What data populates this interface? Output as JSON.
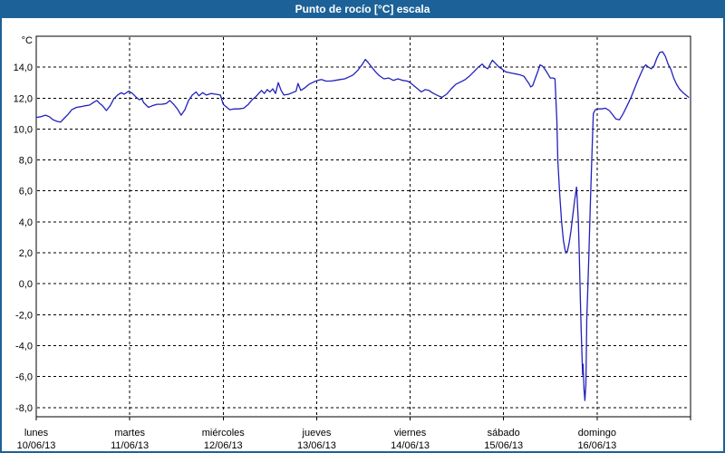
{
  "window": {
    "title": "Punto de rocío [°C] escala"
  },
  "colors": {
    "titlebar": "#1c6298",
    "window_border": "#1c6298",
    "series_line": "#2222bb",
    "plot_border": "#000000",
    "grid": "#000000",
    "label_text": "#000000",
    "background": "#ffffff"
  },
  "chart_data": {
    "type": "line",
    "title": "Punto de rocío [°C] escala",
    "ylabel_unit": "°C",
    "grid": "dashed",
    "legend": "none",
    "y_axis": {
      "min": -8.6,
      "max": 16.0,
      "tick_values": [
        14,
        12,
        10,
        8,
        6,
        4,
        2,
        0,
        -2,
        -4,
        -6,
        -8
      ],
      "tick_labels": [
        "14,0",
        "12,0",
        "10,0",
        "8,0",
        "6,0",
        "4,0",
        "2,0",
        "0,0",
        "-2,0",
        "-4,0",
        "-6,0",
        "-8,0"
      ]
    },
    "x_axis": {
      "day_span": 7,
      "tick_days": [
        0,
        1,
        2,
        3,
        4,
        5,
        6,
        7
      ],
      "labels": [
        {
          "name": "lunes",
          "date": "10/06/13"
        },
        {
          "name": "martes",
          "date": "11/06/13"
        },
        {
          "name": "miércoles",
          "date": "12/06/13"
        },
        {
          "name": "jueves",
          "date": "13/06/13"
        },
        {
          "name": "viernes",
          "date": "14/06/13"
        },
        {
          "name": "sábado",
          "date": "15/06/13"
        },
        {
          "name": "domingo",
          "date": "16/06/13"
        }
      ]
    },
    "series": [
      {
        "name": "Punto de rocío [°C]",
        "color": "#2222bb",
        "points": [
          [
            0,
            10.75
          ],
          [
            0.05,
            10.8
          ],
          [
            0.1,
            10.9
          ],
          [
            0.14,
            10.8
          ],
          [
            0.18,
            10.6
          ],
          [
            0.22,
            10.5
          ],
          [
            0.26,
            10.45
          ],
          [
            0.3,
            10.7
          ],
          [
            0.34,
            10.95
          ],
          [
            0.38,
            11.25
          ],
          [
            0.43,
            11.4
          ],
          [
            0.48,
            11.45
          ],
          [
            0.52,
            11.5
          ],
          [
            0.57,
            11.55
          ],
          [
            0.62,
            11.75
          ],
          [
            0.65,
            11.85
          ],
          [
            0.68,
            11.65
          ],
          [
            0.71,
            11.5
          ],
          [
            0.75,
            11.2
          ],
          [
            0.79,
            11.5
          ],
          [
            0.83,
            11.95
          ],
          [
            0.87,
            12.2
          ],
          [
            0.91,
            12.35
          ],
          [
            0.94,
            12.25
          ],
          [
            0.99,
            12.45
          ],
          [
            1.03,
            12.3
          ],
          [
            1.07,
            12.05
          ],
          [
            1.1,
            11.9
          ],
          [
            1.13,
            11.95
          ],
          [
            1.15,
            11.7
          ],
          [
            1.2,
            11.4
          ],
          [
            1.24,
            11.5
          ],
          [
            1.29,
            11.6
          ],
          [
            1.34,
            11.6
          ],
          [
            1.39,
            11.65
          ],
          [
            1.43,
            11.85
          ],
          [
            1.47,
            11.6
          ],
          [
            1.51,
            11.3
          ],
          [
            1.55,
            10.9
          ],
          [
            1.59,
            11.25
          ],
          [
            1.63,
            11.85
          ],
          [
            1.67,
            12.2
          ],
          [
            1.71,
            12.4
          ],
          [
            1.74,
            12.15
          ],
          [
            1.78,
            12.35
          ],
          [
            1.82,
            12.2
          ],
          [
            1.87,
            12.3
          ],
          [
            1.92,
            12.25
          ],
          [
            1.97,
            12.2
          ],
          [
            2,
            11.6
          ],
          [
            2.04,
            11.4
          ],
          [
            2.07,
            11.25
          ],
          [
            2.12,
            11.3
          ],
          [
            2.17,
            11.3
          ],
          [
            2.22,
            11.35
          ],
          [
            2.27,
            11.6
          ],
          [
            2.31,
            11.9
          ],
          [
            2.35,
            12.1
          ],
          [
            2.38,
            12.3
          ],
          [
            2.41,
            12.5
          ],
          [
            2.44,
            12.3
          ],
          [
            2.47,
            12.55
          ],
          [
            2.5,
            12.4
          ],
          [
            2.53,
            12.6
          ],
          [
            2.56,
            12.3
          ],
          [
            2.59,
            13
          ],
          [
            2.62,
            12.5
          ],
          [
            2.65,
            12.2
          ],
          [
            2.7,
            12.25
          ],
          [
            2.74,
            12.35
          ],
          [
            2.78,
            12.45
          ],
          [
            2.8,
            12.95
          ],
          [
            2.83,
            12.5
          ],
          [
            2.87,
            12.65
          ],
          [
            2.92,
            12.9
          ],
          [
            2.97,
            13.05
          ],
          [
            3.01,
            13.15
          ],
          [
            3.05,
            13.2
          ],
          [
            3.1,
            13.1
          ],
          [
            3.15,
            13.1
          ],
          [
            3.2,
            13.15
          ],
          [
            3.25,
            13.2
          ],
          [
            3.3,
            13.25
          ],
          [
            3.34,
            13.35
          ],
          [
            3.39,
            13.5
          ],
          [
            3.44,
            13.8
          ],
          [
            3.49,
            14.2
          ],
          [
            3.52,
            14.5
          ],
          [
            3.55,
            14.3
          ],
          [
            3.59,
            14
          ],
          [
            3.63,
            13.7
          ],
          [
            3.67,
            13.45
          ],
          [
            3.72,
            13.25
          ],
          [
            3.77,
            13.3
          ],
          [
            3.82,
            13.15
          ],
          [
            3.87,
            13.25
          ],
          [
            3.92,
            13.15
          ],
          [
            3.97,
            13.1
          ],
          [
            4,
            13
          ],
          [
            4.04,
            12.8
          ],
          [
            4.08,
            12.6
          ],
          [
            4.12,
            12.4
          ],
          [
            4.16,
            12.55
          ],
          [
            4.2,
            12.5
          ],
          [
            4.25,
            12.3
          ],
          [
            4.3,
            12.15
          ],
          [
            4.34,
            12.05
          ],
          [
            4.39,
            12.25
          ],
          [
            4.44,
            12.6
          ],
          [
            4.49,
            12.9
          ],
          [
            4.54,
            13.05
          ],
          [
            4.59,
            13.2
          ],
          [
            4.63,
            13.4
          ],
          [
            4.68,
            13.7
          ],
          [
            4.73,
            14
          ],
          [
            4.77,
            14.2
          ],
          [
            4.8,
            14
          ],
          [
            4.83,
            13.9
          ],
          [
            4.88,
            14.45
          ],
          [
            4.92,
            14.2
          ],
          [
            4.95,
            14
          ],
          [
            4.99,
            13.85
          ],
          [
            5.02,
            13.7
          ],
          [
            5.06,
            13.65
          ],
          [
            5.1,
            13.6
          ],
          [
            5.14,
            13.55
          ],
          [
            5.18,
            13.5
          ],
          [
            5.22,
            13.4
          ],
          [
            5.24,
            13.2
          ],
          [
            5.27,
            12.95
          ],
          [
            5.29,
            12.72
          ],
          [
            5.31,
            12.8
          ],
          [
            5.34,
            13.3
          ],
          [
            5.37,
            13.8
          ],
          [
            5.39,
            14.15
          ],
          [
            5.42,
            14.05
          ],
          [
            5.45,
            13.8
          ],
          [
            5.48,
            13.5
          ],
          [
            5.5,
            13.3
          ],
          [
            5.53,
            13.3
          ],
          [
            5.55,
            13.25
          ],
          [
            5.57,
            10.5
          ],
          [
            5.58,
            8
          ],
          [
            5.6,
            5.8
          ],
          [
            5.62,
            4
          ],
          [
            5.64,
            2.8
          ],
          [
            5.66,
            2.1
          ],
          [
            5.68,
            2.05
          ],
          [
            5.7,
            2.6
          ],
          [
            5.72,
            3.4
          ],
          [
            5.74,
            4.4
          ],
          [
            5.76,
            5.4
          ],
          [
            5.78,
            6.25
          ],
          [
            5.8,
            4
          ],
          [
            5.81,
            1.7
          ],
          [
            5.82,
            -0.8
          ],
          [
            5.83,
            -3
          ],
          [
            5.84,
            -5
          ],
          [
            5.845,
            -5.9
          ],
          [
            5.85,
            -5.2
          ],
          [
            5.86,
            -6.8
          ],
          [
            5.87,
            -7.55
          ],
          [
            5.88,
            -6.5
          ],
          [
            5.885,
            -4.5
          ],
          [
            5.89,
            -2.2
          ],
          [
            5.9,
            -0.5
          ],
          [
            5.91,
            1.5
          ],
          [
            5.92,
            3.5
          ],
          [
            5.93,
            5.5
          ],
          [
            5.94,
            7.5
          ],
          [
            5.95,
            9.3
          ],
          [
            5.96,
            11
          ],
          [
            5.98,
            11.25
          ],
          [
            6.01,
            11.3
          ],
          [
            6.05,
            11.3
          ],
          [
            6.09,
            11.35
          ],
          [
            6.13,
            11.2
          ],
          [
            6.17,
            10.9
          ],
          [
            6.2,
            10.65
          ],
          [
            6.24,
            10.6
          ],
          [
            6.28,
            11
          ],
          [
            6.32,
            11.5
          ],
          [
            6.36,
            12
          ],
          [
            6.4,
            12.6
          ],
          [
            6.44,
            13.2
          ],
          [
            6.48,
            13.75
          ],
          [
            6.5,
            14
          ],
          [
            6.52,
            14.15
          ],
          [
            6.55,
            14
          ],
          [
            6.58,
            13.9
          ],
          [
            6.61,
            14.1
          ],
          [
            6.64,
            14.6
          ],
          [
            6.67,
            14.95
          ],
          [
            6.7,
            15
          ],
          [
            6.73,
            14.7
          ],
          [
            6.76,
            14.2
          ],
          [
            6.79,
            13.85
          ],
          [
            6.82,
            13.3
          ],
          [
            6.85,
            12.9
          ],
          [
            6.88,
            12.6
          ],
          [
            6.92,
            12.35
          ],
          [
            6.95,
            12.2
          ],
          [
            6.98,
            12.05
          ]
        ]
      }
    ]
  }
}
